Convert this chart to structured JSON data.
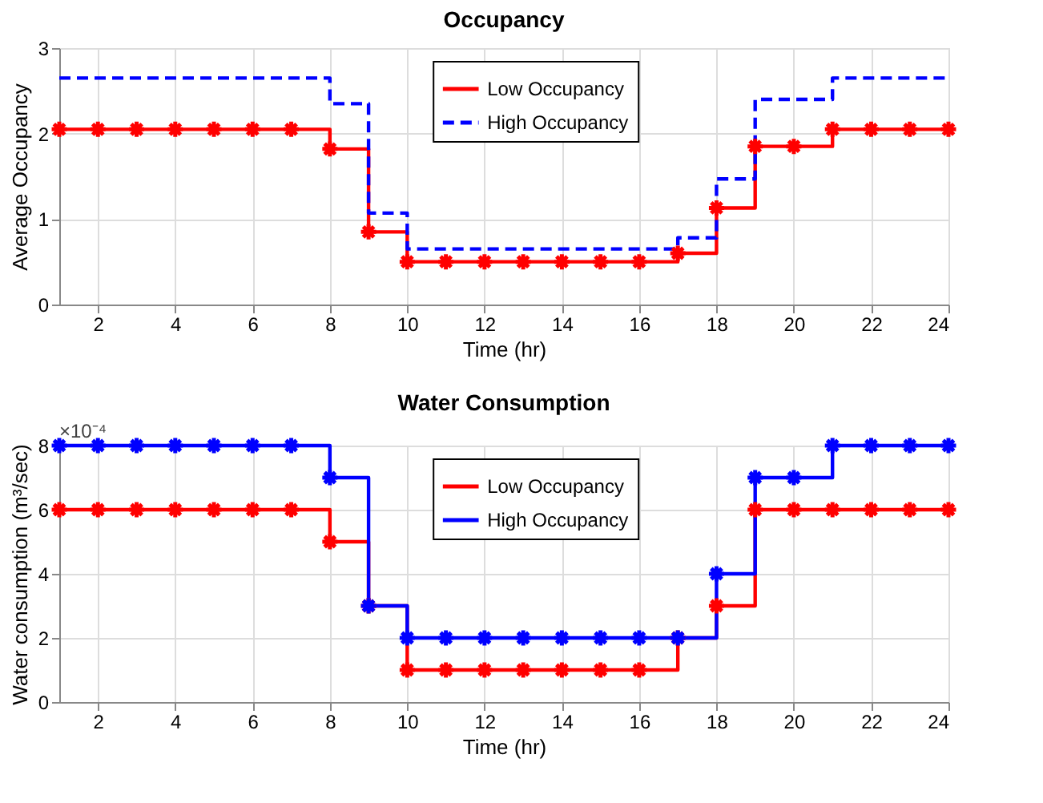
{
  "chart_data": [
    {
      "type": "step",
      "title": "Occupancy",
      "xlabel": "Time (hr)",
      "ylabel": "Average Occupancy",
      "x": [
        1,
        2,
        3,
        4,
        5,
        6,
        7,
        8,
        9,
        10,
        11,
        12,
        13,
        14,
        15,
        16,
        17,
        18,
        19,
        20,
        21,
        22,
        23,
        24
      ],
      "xlim": [
        1,
        24
      ],
      "xticks": [
        2,
        4,
        6,
        8,
        10,
        12,
        14,
        16,
        18,
        20,
        22,
        24
      ],
      "ylim": [
        0,
        3
      ],
      "yticks": [
        0,
        1,
        2,
        3
      ],
      "grid": true,
      "legend": "top",
      "series": [
        {
          "name": "Low Occupancy",
          "color": "#ff0000",
          "marker": "cross",
          "line_style": "solid",
          "values": [
            2.05,
            2.05,
            2.05,
            2.05,
            2.05,
            2.05,
            2.05,
            1.82,
            0.85,
            0.5,
            0.5,
            0.5,
            0.5,
            0.5,
            0.5,
            0.5,
            0.6,
            1.13,
            1.85,
            1.85,
            2.05,
            2.05,
            2.05,
            2.05
          ]
        },
        {
          "name": "High Occupancy",
          "color": "#0000ff",
          "marker": "none",
          "line_style": "dashed",
          "values": [
            2.65,
            2.65,
            2.65,
            2.65,
            2.65,
            2.65,
            2.65,
            2.35,
            1.07,
            0.65,
            0.65,
            0.65,
            0.65,
            0.65,
            0.65,
            0.65,
            0.78,
            1.47,
            2.4,
            2.4,
            2.65,
            2.65,
            2.65,
            2.65
          ]
        }
      ]
    },
    {
      "type": "step",
      "title": "Water Consumption",
      "xlabel": "Time (hr)",
      "ylabel": "Water consumption (m³/sec)",
      "annotations": [
        "×10⁻⁴"
      ],
      "x": [
        1,
        2,
        3,
        4,
        5,
        6,
        7,
        8,
        9,
        10,
        11,
        12,
        13,
        14,
        15,
        16,
        17,
        18,
        19,
        20,
        21,
        22,
        23,
        24
      ],
      "xlim": [
        1,
        24
      ],
      "xticks": [
        2,
        4,
        6,
        8,
        10,
        12,
        14,
        16,
        18,
        20,
        22,
        24
      ],
      "ylim": [
        0,
        8
      ],
      "yticks": [
        0,
        2,
        4,
        6,
        8
      ],
      "grid": true,
      "legend": "top",
      "series": [
        {
          "name": "Low Occupancy",
          "color": "#ff0000",
          "marker": "cross",
          "line_style": "solid",
          "values": [
            6,
            6,
            6,
            6,
            6,
            6,
            6,
            5,
            3,
            1,
            1,
            1,
            1,
            1,
            1,
            1,
            2,
            3,
            6,
            6,
            6,
            6,
            6,
            6
          ]
        },
        {
          "name": "High Occupancy",
          "color": "#0000ff",
          "marker": "cross",
          "line_style": "solid",
          "values": [
            8,
            8,
            8,
            8,
            8,
            8,
            8,
            7,
            3,
            2,
            2,
            2,
            2,
            2,
            2,
            2,
            2,
            4,
            7,
            7,
            8,
            8,
            8,
            8
          ]
        }
      ]
    }
  ]
}
